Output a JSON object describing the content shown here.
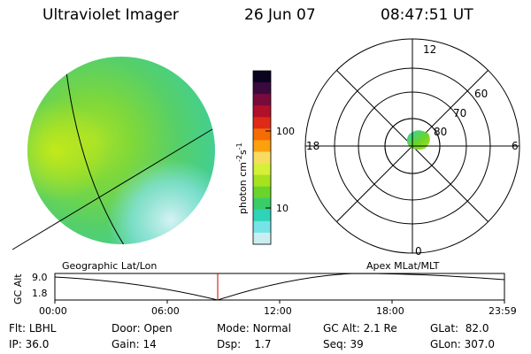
{
  "header": {
    "title": "Ultraviolet Imager",
    "date": "26 Jun 07",
    "time": "08:47:51 UT"
  },
  "colorbar": {
    "label": "photon cm",
    "label_exp1": "-2",
    "label_mid": "s",
    "label_exp2": "-1",
    "tick_100": "100",
    "tick_10": "10",
    "colors": [
      "#0b0420",
      "#3a0a3f",
      "#7a0a3c",
      "#b0102a",
      "#de2a16",
      "#f46c06",
      "#fba10e",
      "#f6dd62",
      "#d6ef38",
      "#a7e21f",
      "#6ad42a",
      "#3bcc6a",
      "#2fd4b8",
      "#76e3e6",
      "#c9eef2"
    ]
  },
  "polar": {
    "mlt_top": "12",
    "mlt_left": "18",
    "mlt_right": "6",
    "mlt_bottom": "0",
    "lat_60": "60",
    "lat_70": "70",
    "lat_80": "80"
  },
  "orbit": {
    "left_title": "Geographic Lat/Lon",
    "right_title": "Apex MLat/MLT",
    "yaxis_label": "GC Alt",
    "y_top": "9.0",
    "y_bottom": "1.8",
    "x_ticks": [
      "00:00",
      "06:00",
      "12:00",
      "18:00",
      "23:59"
    ],
    "marker_color": "#cc0000"
  },
  "status": {
    "filter_label": "Flt:",
    "filter_value": "LBHL",
    "ip_label": "IP:",
    "ip_value": "36.0",
    "door_label": "Door:",
    "door_value": "Open",
    "gain_label": "Gain:",
    "gain_value": "14",
    "mode_label": "Mode:",
    "mode_value": "Normal",
    "dsp_label": "Dsp:",
    "dsp_value": "1.7",
    "gcalt_label": "GC Alt:",
    "gcalt_value": "2.1 Re",
    "seq_label": "Seq:",
    "seq_value": "39",
    "glat_label": "GLat:",
    "glat_value": "82.0",
    "glon_label": "GLon:",
    "glon_value": "307.0"
  }
}
